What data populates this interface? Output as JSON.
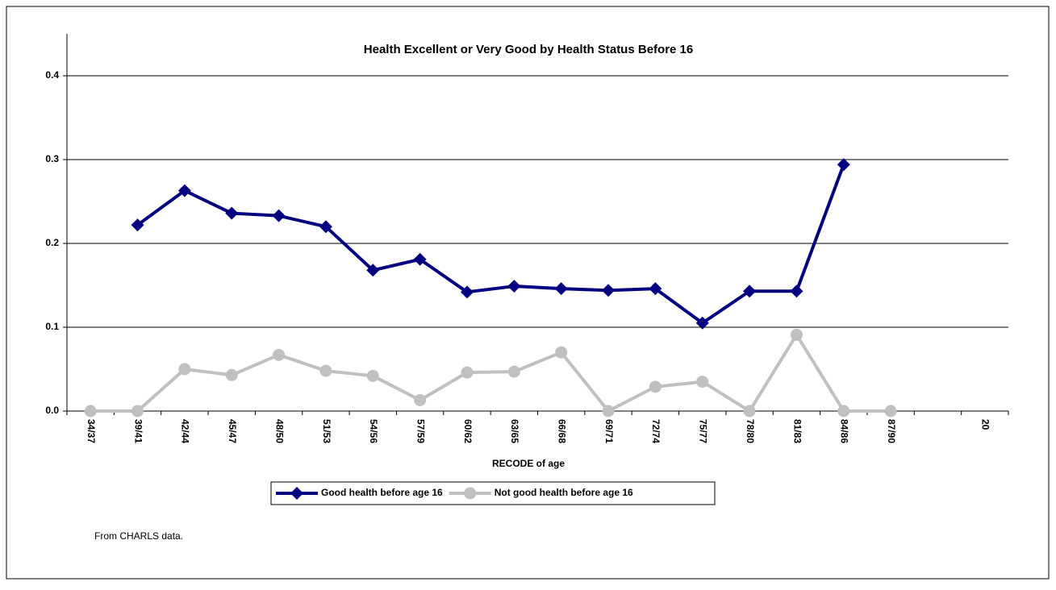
{
  "chart_data": {
    "type": "line",
    "title": "Health Excellent or Very Good by Health Status Before 16",
    "x_label": "RECODE of age",
    "categories": [
      "34/37",
      "39/41",
      "42/44",
      "45/47",
      "48/50",
      "51/53",
      "54/56",
      "57/59",
      "60/62",
      "63/65",
      "66/68",
      "69/71",
      "72/74",
      "75/77",
      "78/80",
      "81/83",
      "84/86",
      "87/90",
      null,
      "20"
    ],
    "series": [
      {
        "name": "Good health before age 16",
        "color": "#000080",
        "marker": "diamond",
        "values": [
          null,
          0.222,
          0.263,
          0.236,
          0.233,
          0.22,
          0.168,
          0.181,
          0.142,
          0.149,
          0.146,
          0.144,
          0.146,
          0.105,
          0.143,
          0.143,
          0.294,
          null,
          null,
          null
        ]
      },
      {
        "name": "Not good health before age 16",
        "color": "#c0c0c0",
        "marker": "circle",
        "values": [
          0,
          0,
          0.05,
          0.043,
          0.067,
          0.048,
          0.042,
          0.013,
          0.046,
          0.047,
          0.07,
          0,
          0.029,
          0.035,
          0,
          0.091,
          0,
          0,
          null,
          null
        ]
      }
    ],
    "ylim": [
      0,
      0.45
    ],
    "yticks": [
      {
        "value": 0,
        "label": "0.0"
      },
      0.1,
      0.2,
      0.3,
      0.4
    ],
    "grid": true,
    "legend": "bottom",
    "annotation": "From CHARLS data."
  }
}
